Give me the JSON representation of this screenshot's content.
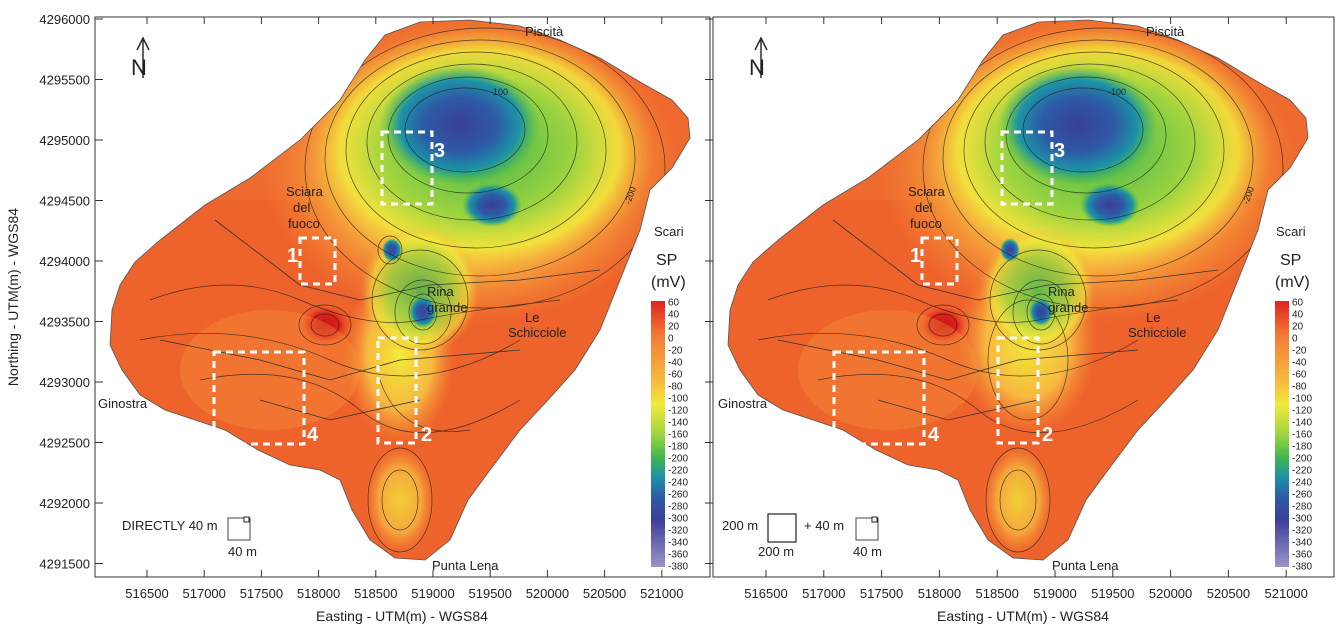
{
  "yaxis_label": "Northing - UTM(m) - WGS84",
  "xaxis_label": "Easting - UTM(m) - WGS84",
  "yticks": [
    "4296000",
    "4295500",
    "4295000",
    "4294500",
    "4294000",
    "4293500",
    "4293000",
    "4292500",
    "4292000",
    "4291500"
  ],
  "xticks": [
    "516500",
    "517000",
    "517500",
    "518000",
    "518500",
    "519000",
    "519500",
    "520000",
    "520500",
    "521000"
  ],
  "places": {
    "pisc": "Piscità",
    "scari": "Scari",
    "sciara1": "Sciara",
    "sciara2": "del",
    "sciara3": "fuoco",
    "rina1": "Rina",
    "rina2": "grande",
    "le1": "Le",
    "le2": "Schicciole",
    "ginostra": "Ginostra",
    "punta": "Punta Lena"
  },
  "zones": [
    "1",
    "2",
    "3",
    "4"
  ],
  "contour_labels": {
    "a": "-100",
    "b": "-200"
  },
  "colorbar": {
    "title": "SP",
    "unit": "(mV)",
    "labels": [
      "60",
      "40",
      "20",
      "0",
      "-20",
      "-40",
      "-60",
      "-80",
      "-100",
      "-120",
      "-140",
      "-160",
      "-180",
      "-200",
      "-220",
      "-240",
      "-260",
      "-280",
      "-300",
      "-320",
      "-340",
      "-360",
      "-380"
    ],
    "colors": [
      "#e0231f",
      "#ef4a22",
      "#f26a2e",
      "#f37c34",
      "#f48c38",
      "#f5a13c",
      "#f7b940",
      "#f9d349",
      "#f1ea3a",
      "#cfe33c",
      "#9fd43f",
      "#6ec54c",
      "#40b64e",
      "#24a67c",
      "#1c93a6",
      "#2478b4",
      "#2d5aa6",
      "#34459c",
      "#3a3f97",
      "#4e4aa0",
      "#6a5aab",
      "#8574b8",
      "#9e93c8"
    ]
  },
  "left_panel": {
    "scale_text": "DIRECTLY 40 m",
    "scale_sub": "40 m"
  },
  "right_panel": {
    "scale_a": "200 m",
    "scale_a_sub": "200 m",
    "scale_plus": "+ 40 m",
    "scale_b_sub": "40 m"
  },
  "north_symbol": "N",
  "colors": {
    "warm": "#ef5a28",
    "cool": "#2f48a6",
    "dash": "#ffffff"
  }
}
